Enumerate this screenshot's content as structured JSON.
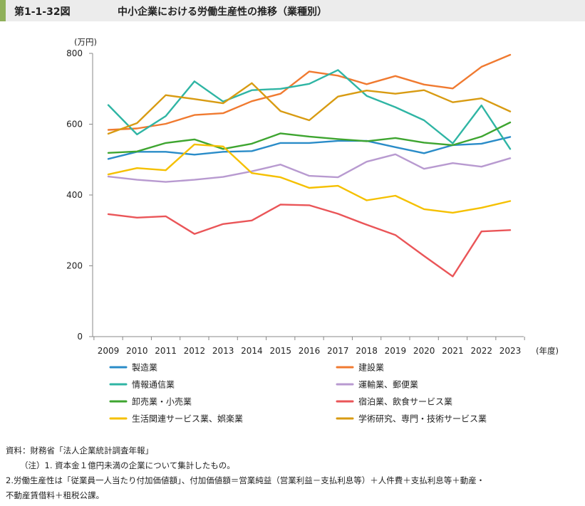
{
  "header": {
    "figure_number": "第1-1-32図",
    "title": "中小企業における労働生産性の推移（業種別）"
  },
  "chart_data": {
    "type": "line",
    "y_unit": "(万円)",
    "x_unit": "(年度)",
    "ylim": [
      0,
      800
    ],
    "yticks": [
      0,
      200,
      400,
      600,
      800
    ],
    "grid": false,
    "legend_position": "bottom",
    "x": [
      "2009",
      "2010",
      "2011",
      "2012",
      "2013",
      "2014",
      "2015",
      "2016",
      "2017",
      "2018",
      "2019",
      "2020",
      "2021",
      "2022",
      "2023"
    ],
    "series": [
      {
        "name": "製造業",
        "color": "#2a8cc8",
        "values": [
          502,
          522,
          522,
          514,
          522,
          524,
          547,
          547,
          553,
          553,
          535,
          518,
          541,
          545,
          564
        ]
      },
      {
        "name": "建設業",
        "color": "#f07a30",
        "values": [
          584,
          588,
          601,
          626,
          631,
          665,
          686,
          749,
          737,
          713,
          736,
          712,
          701,
          762,
          796
        ]
      },
      {
        "name": "情報通信業",
        "color": "#2fb5a4",
        "values": [
          654,
          571,
          623,
          721,
          664,
          696,
          700,
          714,
          753,
          680,
          648,
          611,
          546,
          653,
          530
        ]
      },
      {
        "name": "運輸業、郵便業",
        "color": "#b89ad0",
        "values": [
          452,
          443,
          437,
          443,
          451,
          467,
          486,
          454,
          450,
          494,
          515,
          474,
          490,
          480,
          504
        ]
      },
      {
        "name": "卸売業・小売業",
        "color": "#3ea530",
        "values": [
          519,
          523,
          547,
          557,
          530,
          545,
          574,
          565,
          558,
          552,
          561,
          548,
          541,
          565,
          605
        ]
      },
      {
        "name": "宿泊業、飲食サービス業",
        "color": "#ea5558",
        "values": [
          346,
          336,
          340,
          290,
          318,
          328,
          373,
          371,
          347,
          316,
          287,
          228,
          170,
          297,
          301
        ]
      },
      {
        "name": "生活関連サービス業、娯楽業",
        "color": "#f5c000",
        "values": [
          458,
          476,
          470,
          543,
          537,
          462,
          450,
          420,
          426,
          385,
          398,
          360,
          350,
          364,
          383
        ]
      },
      {
        "name": "学術研究、専門・技術サービス業",
        "color": "#d89b12",
        "values": [
          573,
          603,
          682,
          671,
          659,
          716,
          637,
          611,
          678,
          695,
          686,
          696,
          662,
          673,
          636
        ]
      }
    ]
  },
  "notes": [
    "資料：財務省「法人企業統計調査年報」",
    "（注）1. 資本金１億円未満の企業について集計したもの。",
    "2.労働生産性は「従業員一人当たり付加価値額」、付加価値額＝営業純益（営業利益－支払利息等）＋人件費＋支払利息等＋動産・",
    "不動産賃借料＋租税公課。"
  ]
}
